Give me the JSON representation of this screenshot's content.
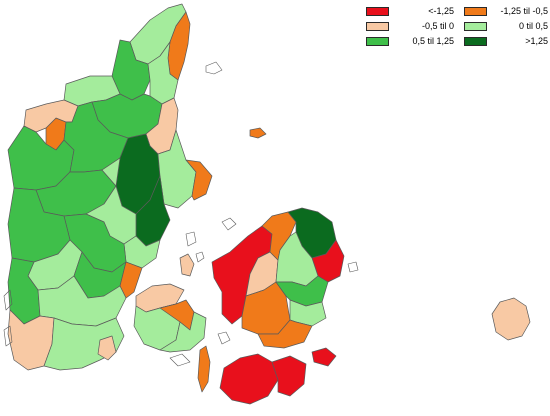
{
  "colors": {
    "lt_-1.25": "#e8101c",
    "-1.25_-0.5": "#f07a1a",
    "-0.5_0": "#f8c9a4",
    "0_0.5": "#a4ec9c",
    "0.5_1.25": "#3fbf4a",
    "gt_1.25": "#0b6b1f",
    "sea": "#ffffff",
    "border": "#5a5a5a"
  },
  "legend": {
    "items": [
      {
        "label": "<-1,25",
        "class": "lt_-1.25"
      },
      {
        "label": "-1,25 til -0,5",
        "class": "-1.25_-0.5"
      },
      {
        "label": "-0,5 til 0",
        "class": "-0.5_0"
      },
      {
        "label": "0 til 0,5",
        "class": "0_0.5"
      },
      {
        "label": "0,5 til 1,25",
        "class": "0.5_1.25"
      },
      {
        "label": ">1,25",
        "class": "gt_1.25"
      }
    ]
  },
  "regions": [
    {
      "name": "north-jutland-tip",
      "class": "0_0.5"
    },
    {
      "name": "north-jutland-east",
      "class": "-1.25_-0.5"
    },
    {
      "name": "north-jutland-west",
      "class": "0.5_1.25"
    },
    {
      "name": "north-jutland-center",
      "class": "0_0.5"
    },
    {
      "name": "thy",
      "class": "0_0.5"
    },
    {
      "name": "mors",
      "class": "-1.25_-0.5"
    },
    {
      "name": "salling",
      "class": "-0.5_0"
    },
    {
      "name": "himmerland",
      "class": "0.5_1.25"
    },
    {
      "name": "mariager",
      "class": "-0.5_0"
    },
    {
      "name": "west-jutland-north",
      "class": "0.5_1.25"
    },
    {
      "name": "viborg",
      "class": "0.5_1.25"
    },
    {
      "name": "randers",
      "class": "gt_1.25"
    },
    {
      "name": "djursland",
      "class": "0_0.5"
    },
    {
      "name": "djursland-east",
      "class": "-1.25_-0.5"
    },
    {
      "name": "aarhus",
      "class": "gt_1.25"
    },
    {
      "name": "herning",
      "class": "0.5_1.25"
    },
    {
      "name": "silkeborg",
      "class": "0_0.5"
    },
    {
      "name": "skanderborg",
      "class": "0_0.5"
    },
    {
      "name": "horsens",
      "class": "0.5_1.25"
    },
    {
      "name": "west-coast",
      "class": "0.5_1.25"
    },
    {
      "name": "ringkobing-south",
      "class": "0_0.5"
    },
    {
      "name": "vejle",
      "class": "0.5_1.25"
    },
    {
      "name": "fredericia",
      "class": "-1.25_-0.5"
    },
    {
      "name": "esbjerg",
      "class": "0.5_1.25"
    },
    {
      "name": "kolding",
      "class": "0_0.5"
    },
    {
      "name": "south-jutland-west",
      "class": "-0.5_0"
    },
    {
      "name": "south-jutland-center",
      "class": "0_0.5"
    },
    {
      "name": "als",
      "class": "-0.5_0"
    },
    {
      "name": "funen-north",
      "class": "-0.5_0"
    },
    {
      "name": "funen-center",
      "class": "0_0.5"
    },
    {
      "name": "odense",
      "class": "-1.25_-0.5"
    },
    {
      "name": "funen-south",
      "class": "0_0.5"
    },
    {
      "name": "langeland",
      "class": "-1.25_-0.5"
    },
    {
      "name": "zealand-west",
      "class": "lt_-1.25"
    },
    {
      "name": "zealand-center",
      "class": "-0.5_0"
    },
    {
      "name": "zealand-south",
      "class": "-1.25_-0.5"
    },
    {
      "name": "zealand-north",
      "class": "-1.25_-0.5"
    },
    {
      "name": "north-zealand",
      "class": "gt_1.25"
    },
    {
      "name": "copenhagen",
      "class": "lt_-1.25"
    },
    {
      "name": "roskilde",
      "class": "0_0.5"
    },
    {
      "name": "koge",
      "class": "0.5_1.25"
    },
    {
      "name": "stevns",
      "class": "0_0.5"
    },
    {
      "name": "naestved",
      "class": "-1.25_-0.5"
    },
    {
      "name": "mon",
      "class": "lt_-1.25"
    },
    {
      "name": "lolland",
      "class": "lt_-1.25"
    },
    {
      "name": "falster",
      "class": "lt_-1.25"
    },
    {
      "name": "samso",
      "class": "-0.5_0"
    },
    {
      "name": "anholt",
      "class": "-1.25_-0.5"
    },
    {
      "name": "bornholm",
      "class": "-0.5_0"
    }
  ]
}
